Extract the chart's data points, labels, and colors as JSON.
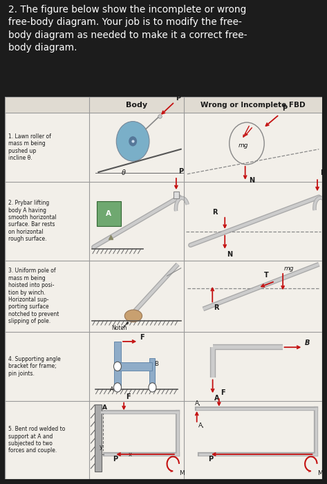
{
  "bg_color": "#1c1c1c",
  "table_bg": "#f2efe9",
  "header_bg": "#e0dbd2",
  "title_text": "2. The figure below show the incomplete or wrong\nfree-body diagram. Your job is to modify the free-\nbody diagram as needed to make it a correct free-\nbody diagram.",
  "title_color": "#ffffff",
  "col2_header": "Body",
  "col3_header": "Wrong or Incomplete FBD",
  "rows": [
    "1. Lawn roller of\nmass m being\npushed up\nincline θ.",
    "2. Prybar lifting\nbody A having\nsmooth horizontal\nsurface. Bar rests\non horizontal\nrough surface.",
    "3. Uniform pole of\nmass m being\nhoisted into posi-\ntion by winch.\nHorizontal sup-\nporting surface\nnotched to prevent\nslipping of pole.",
    "4. Supporting angle\nbracket for frame;\npin joints.",
    "5. Bent rod welded to\nsupport at A and\nsubjected to two\nforces and couple."
  ],
  "red_color": "#c41010",
  "text_color": "#1a1a1a",
  "grid_color": "#999999",
  "roller_color": "#7aafc8",
  "green_color": "#6fa870"
}
